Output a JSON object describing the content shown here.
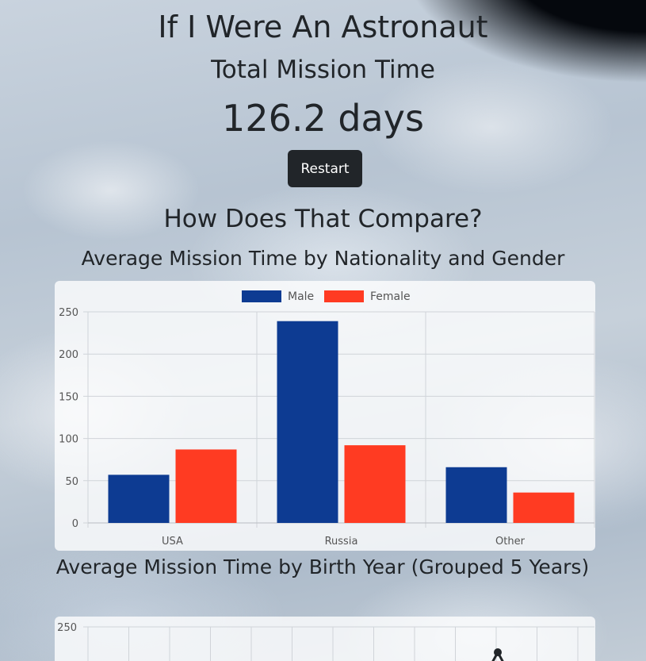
{
  "header": {
    "title": "If I Were An Astronaut",
    "subtitle": "Total Mission Time",
    "mission_value": "126.2 days",
    "restart_label": "Restart"
  },
  "compare": {
    "heading": "How Does That Compare?"
  },
  "charts": {
    "nationality_heading": "Average Mission Time by Nationality and Gender",
    "birth_year_heading": "Average Mission Time by Birth Year (Grouped 5 Years)"
  },
  "colors": {
    "male": "#0d3b92",
    "female": "#ff3b22",
    "line": "#212529"
  },
  "chart_data": [
    {
      "type": "bar",
      "categories": [
        "USA",
        "Russia",
        "Other"
      ],
      "series": [
        {
          "name": "Male",
          "values": [
            57,
            239,
            66
          ]
        },
        {
          "name": "Female",
          "values": [
            87,
            92,
            36
          ]
        }
      ],
      "ylim": [
        0,
        250
      ],
      "yticks": [
        0,
        50,
        100,
        150,
        200,
        250
      ],
      "legend": "top",
      "grid": true
    },
    {
      "type": "line",
      "ylim": [
        0,
        250
      ],
      "yticks": [
        250
      ],
      "grid": true,
      "note_visible": "partially visible, cut off at bottom"
    }
  ]
}
